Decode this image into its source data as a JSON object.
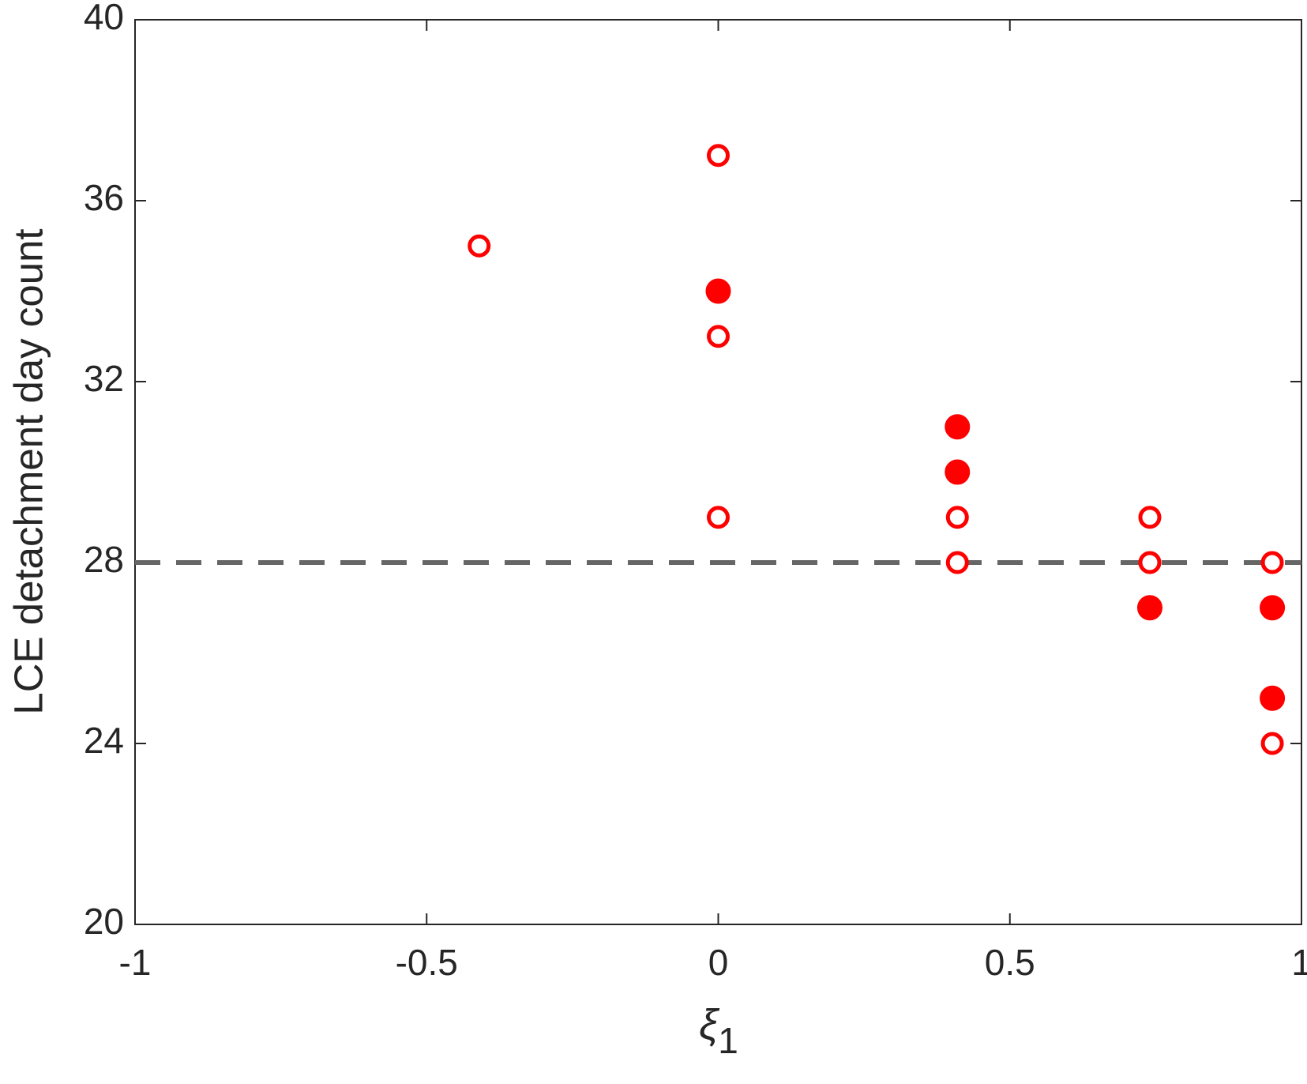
{
  "chart_data": {
    "type": "scatter",
    "xlabel": "ξ",
    "xlabel_subscript": "1",
    "ylabel": "LCE detachment day count",
    "xlim": [
      -1,
      1
    ],
    "ylim": [
      20,
      40
    ],
    "xticks": [
      -1,
      -0.5,
      0,
      0.5,
      1
    ],
    "yticks": [
      20,
      24,
      28,
      32,
      36,
      40
    ],
    "series": [
      {
        "marker": "open",
        "color": "#ff0000",
        "x": [
          -0.41,
          0,
          0,
          0,
          0.41,
          0.41,
          0.74,
          0.74,
          0.95,
          0.95
        ],
        "values": [
          35,
          37,
          33,
          29,
          29,
          28,
          29,
          28,
          28,
          24
        ]
      },
      {
        "marker": "filled",
        "color": "#ff0000",
        "x": [
          0,
          0.41,
          0.41,
          0.74,
          0.95,
          0.95
        ],
        "values": [
          34,
          31,
          30,
          27,
          27,
          25
        ]
      }
    ],
    "hlines": [
      {
        "value": 28,
        "color": "#666666",
        "style": "dashed"
      }
    ]
  }
}
